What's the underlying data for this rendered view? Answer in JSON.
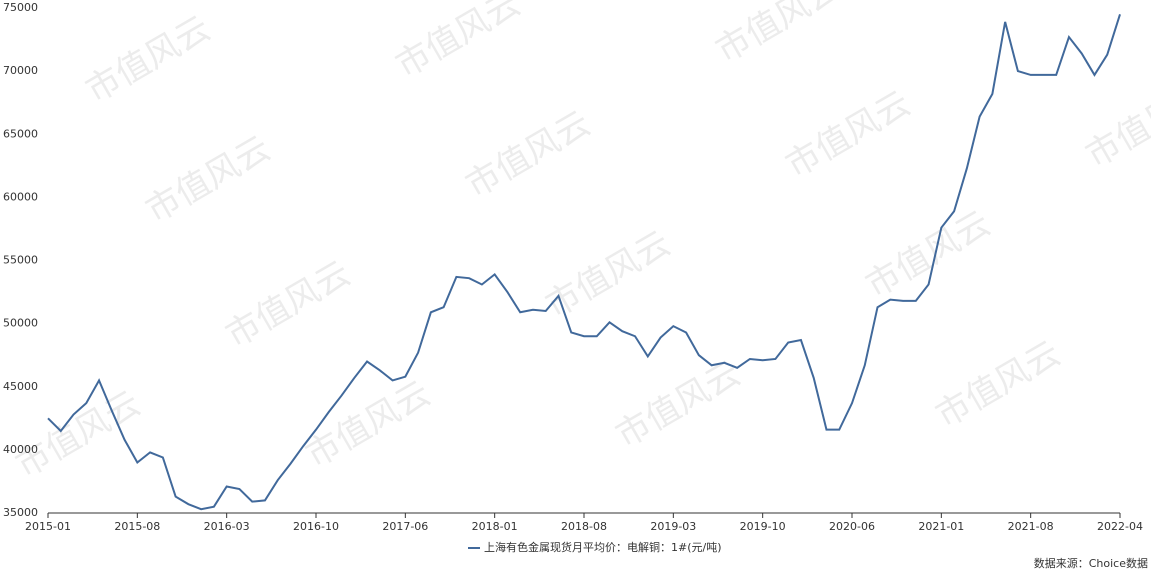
{
  "chart_data": {
    "type": "line",
    "categories": [
      "2015-01",
      null,
      null,
      null,
      null,
      null,
      null,
      "2015-08",
      null,
      null,
      null,
      null,
      null,
      null,
      "2016-03",
      null,
      null,
      null,
      null,
      null,
      null,
      "2016-10",
      null,
      null,
      null,
      null,
      null,
      null,
      "2017-06",
      null,
      null,
      null,
      null,
      null,
      null,
      "2018-01",
      null,
      null,
      null,
      null,
      null,
      null,
      "2018-08",
      null,
      null,
      null,
      null,
      null,
      null,
      "2019-03",
      null,
      null,
      null,
      null,
      null,
      null,
      "2019-10",
      null,
      null,
      null,
      null,
      null,
      null,
      "2020-06",
      null,
      null,
      null,
      null,
      null,
      null,
      "2021-01",
      null,
      null,
      null,
      null,
      null,
      null,
      "2021-08",
      null,
      null,
      null,
      null,
      null,
      null,
      "2022-04"
    ],
    "series": [
      {
        "name": "上海有色金属现货月平均价：电解铜：1#(元/吨)",
        "color": "#41699b",
        "values": [
          42500,
          41500,
          42800,
          43700,
          45500,
          43100,
          40800,
          39000,
          39800,
          39400,
          36300,
          35700,
          35300,
          35500,
          37100,
          36900,
          35900,
          36000,
          37600,
          38900,
          40300,
          41600,
          43000,
          44300,
          45700,
          47000,
          46300,
          45500,
          45800,
          47700,
          50900,
          51300,
          53700,
          53600,
          53100,
          53900,
          52500,
          50900,
          51100,
          51000,
          52200,
          49300,
          49000,
          49000,
          50100,
          49400,
          49000,
          47400,
          48900,
          49800,
          49300,
          47500,
          46700,
          46900,
          46500,
          47200,
          47100,
          47200,
          48500,
          48700,
          45700,
          41600,
          41600,
          43700,
          46700,
          51300,
          51900,
          51800,
          51800,
          53100,
          57600,
          58900,
          62300,
          66400,
          68200,
          73900,
          70000,
          69700,
          69700,
          69700,
          72700,
          71400,
          69700,
          71300,
          74500
        ]
      }
    ],
    "ylim": [
      35000,
      75000
    ],
    "yticks": [
      35000,
      40000,
      45000,
      50000,
      55000,
      60000,
      65000,
      70000,
      75000
    ],
    "grid": false,
    "legend": "bottom"
  },
  "source": "数据来源：Choice数据",
  "watermark": "市值风云"
}
